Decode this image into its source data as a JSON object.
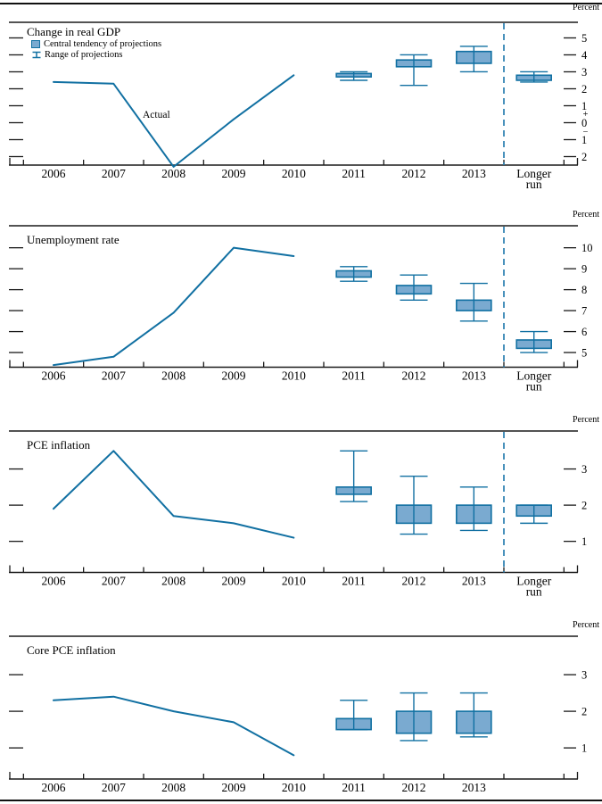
{
  "figure": {
    "colors": {
      "line_stroke": "#1170a2",
      "box_fill": "#7aaad0",
      "box_stroke": "#1170a2",
      "separator": "#2b7fb0",
      "axis": "#1a1a1a"
    }
  },
  "chart_data": [
    {
      "type": "line",
      "title": "Change in real GDP",
      "unit_label": "Percent",
      "legend": {
        "central_tendency": "Central tendency of projections",
        "range": "Range of projections"
      },
      "actual_label": "Actual",
      "x_categories": [
        "2006",
        "2007",
        "2008",
        "2009",
        "2010",
        "2011",
        "2012",
        "2013"
      ],
      "longer_run_label": [
        "Longer",
        "run"
      ],
      "has_longer_run_separator": true,
      "y_axis": {
        "ticks": [
          {
            "value": 5,
            "label": "5"
          },
          {
            "value": 4,
            "label": "4"
          },
          {
            "value": 3,
            "label": "3"
          },
          {
            "value": 2,
            "label": "2"
          },
          {
            "value": 1,
            "label": "1"
          },
          {
            "value": 0,
            "label": "0"
          },
          {
            "value": -1,
            "label": "1"
          },
          {
            "value": -2,
            "label": "2"
          }
        ],
        "plus_sign": "+",
        "minus_sign": "−",
        "top_value": 5.92,
        "bottom_value": -2.5
      },
      "actual_line": {
        "years": [
          "2006",
          "2007",
          "2008",
          "2009",
          "2010"
        ],
        "values": [
          2.4,
          2.3,
          -2.6,
          0.2,
          2.8
        ]
      },
      "projections": [
        {
          "period": "2011",
          "central_tendency": [
            2.7,
            2.9
          ],
          "range": [
            2.5,
            3.0
          ]
        },
        {
          "period": "2012",
          "central_tendency": [
            3.3,
            3.7
          ],
          "range": [
            2.2,
            4.0
          ]
        },
        {
          "period": "2013",
          "central_tendency": [
            3.5,
            4.2
          ],
          "range": [
            3.0,
            4.5
          ]
        },
        {
          "period": "Longer run",
          "central_tendency": [
            2.5,
            2.8
          ],
          "range": [
            2.4,
            3.0
          ]
        }
      ]
    },
    {
      "type": "line",
      "title": "Unemployment rate",
      "unit_label": "Percent",
      "x_categories": [
        "2006",
        "2007",
        "2008",
        "2009",
        "2010",
        "2011",
        "2012",
        "2013"
      ],
      "longer_run_label": [
        "Longer",
        "run"
      ],
      "has_longer_run_separator": true,
      "y_axis": {
        "ticks": [
          {
            "value": 10,
            "label": "10"
          },
          {
            "value": 9,
            "label": "9"
          },
          {
            "value": 8,
            "label": "8"
          },
          {
            "value": 7,
            "label": "7"
          },
          {
            "value": 6,
            "label": "6"
          },
          {
            "value": 5,
            "label": "5"
          }
        ],
        "top_value": 11.05,
        "bottom_value": 4.3
      },
      "actual_line": {
        "years": [
          "2006",
          "2007",
          "2008",
          "2009",
          "2010"
        ],
        "values": [
          4.4,
          4.8,
          6.9,
          10.0,
          9.6
        ]
      },
      "projections": [
        {
          "period": "2011",
          "central_tendency": [
            8.6,
            8.9
          ],
          "range": [
            8.4,
            9.1
          ]
        },
        {
          "period": "2012",
          "central_tendency": [
            7.8,
            8.2
          ],
          "range": [
            7.5,
            8.7
          ]
        },
        {
          "period": "2013",
          "central_tendency": [
            7.0,
            7.5
          ],
          "range": [
            6.5,
            8.3
          ]
        },
        {
          "period": "Longer run",
          "central_tendency": [
            5.2,
            5.6
          ],
          "range": [
            5.0,
            6.0
          ]
        }
      ]
    },
    {
      "type": "line",
      "title": "PCE inflation",
      "unit_label": "Percent",
      "x_categories": [
        "2006",
        "2007",
        "2008",
        "2009",
        "2010",
        "2011",
        "2012",
        "2013"
      ],
      "longer_run_label": [
        "Longer",
        "run"
      ],
      "has_longer_run_separator": true,
      "y_axis": {
        "ticks": [
          {
            "value": 3,
            "label": "3"
          },
          {
            "value": 2,
            "label": "2"
          },
          {
            "value": 1,
            "label": "1"
          }
        ],
        "top_value": 4.05,
        "bottom_value": 0.14
      },
      "actual_line": {
        "years": [
          "2006",
          "2007",
          "2008",
          "2009",
          "2010"
        ],
        "values": [
          1.9,
          3.5,
          1.7,
          1.5,
          1.1
        ]
      },
      "projections": [
        {
          "period": "2011",
          "central_tendency": [
            2.3,
            2.5
          ],
          "range": [
            2.1,
            3.5
          ]
        },
        {
          "period": "2012",
          "central_tendency": [
            1.5,
            2.0
          ],
          "range": [
            1.2,
            2.8
          ]
        },
        {
          "period": "2013",
          "central_tendency": [
            1.5,
            2.0
          ],
          "range": [
            1.3,
            2.5
          ]
        },
        {
          "period": "Longer run",
          "central_tendency": [
            1.7,
            2.0
          ],
          "range": [
            1.5,
            2.0
          ]
        }
      ]
    },
    {
      "type": "line",
      "title": "Core PCE inflation",
      "unit_label": "Percent",
      "x_categories": [
        "2006",
        "2007",
        "2008",
        "2009",
        "2010",
        "2011",
        "2012",
        "2013"
      ],
      "longer_run_label": null,
      "has_longer_run_separator": false,
      "y_axis": {
        "ticks": [
          {
            "value": 3,
            "label": "3"
          },
          {
            "value": 2,
            "label": "2"
          },
          {
            "value": 1,
            "label": "1"
          }
        ],
        "top_value": 4.05,
        "bottom_value": 0.15
      },
      "actual_line": {
        "years": [
          "2006",
          "2007",
          "2008",
          "2009",
          "2010"
        ],
        "values": [
          2.3,
          2.4,
          2.0,
          1.7,
          0.8
        ]
      },
      "projections": [
        {
          "period": "2011",
          "central_tendency": [
            1.5,
            1.8
          ],
          "range": [
            1.5,
            2.3
          ]
        },
        {
          "period": "2012",
          "central_tendency": [
            1.4,
            2.0
          ],
          "range": [
            1.2,
            2.5
          ]
        },
        {
          "period": "2013",
          "central_tendency": [
            1.4,
            2.0
          ],
          "range": [
            1.3,
            2.5
          ]
        }
      ]
    }
  ]
}
